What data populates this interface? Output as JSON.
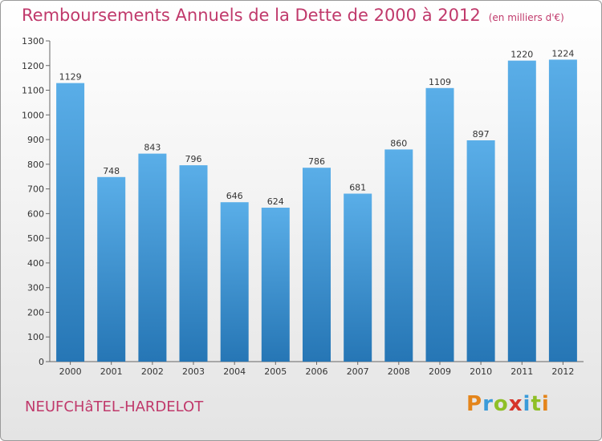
{
  "title": "Remboursements Annuels de la Dette de 2000 à 2012",
  "unit_note": "(en milliers d'€)",
  "commune": "NEUFCHâTEL-HARDELOT",
  "logo": {
    "text": "Proxiti",
    "letter_colors": [
      "#e4851b",
      "#3a9bd9",
      "#8fbf26",
      "#d6342a",
      "#3a9bd9",
      "#8fbf26",
      "#e4851b"
    ]
  },
  "colors": {
    "title": "#c0396b",
    "bar_top": "#5aaee8",
    "bar_bottom": "#2676b5"
  },
  "chart_data": {
    "type": "bar",
    "title": "Remboursements Annuels de la Dette de 2000 à 2012",
    "categories": [
      "2000",
      "2001",
      "2002",
      "2003",
      "2004",
      "2005",
      "2006",
      "2007",
      "2008",
      "2009",
      "2010",
      "2011",
      "2012"
    ],
    "values": [
      1129,
      748,
      843,
      796,
      646,
      624,
      786,
      681,
      860,
      1109,
      897,
      1220,
      1224
    ],
    "ylim": [
      0,
      1300
    ],
    "yticks": [
      0,
      100,
      200,
      300,
      400,
      500,
      600,
      700,
      800,
      900,
      1000,
      1100,
      1200,
      1300
    ],
    "grid": false,
    "data_labels": true
  }
}
